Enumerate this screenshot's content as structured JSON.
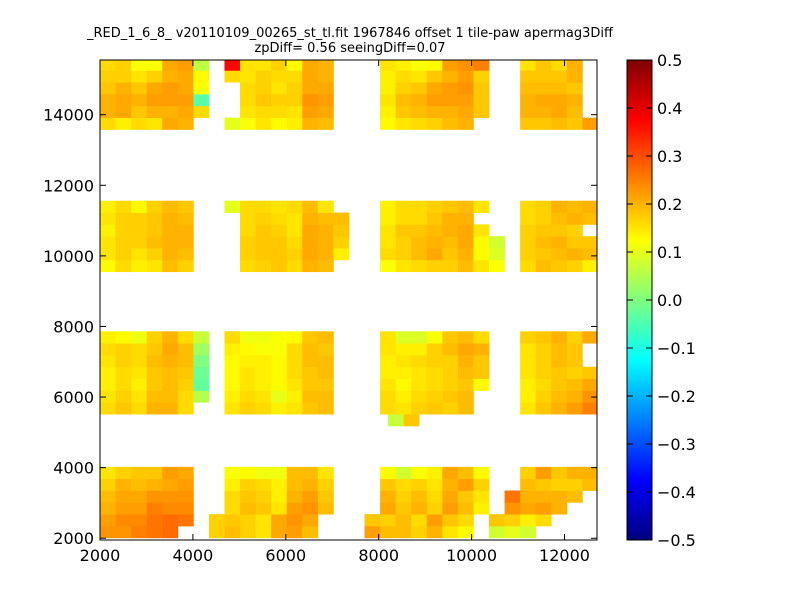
{
  "chart_data": {
    "type": "heatmap",
    "title_line1": "_RED_1_6_8_ v20110109_00265_st_tl.fit 1967846 offset 1 tile-paw apermag3Diff",
    "title_line2": "zpDiff= 0.56 seeingDiff=0.07",
    "xlabel": "",
    "ylabel": "",
    "xlim": [
      2000,
      12700
    ],
    "ylim": [
      1950,
      15550
    ],
    "x_ticks": [
      2000,
      4000,
      6000,
      8000,
      10000,
      12000
    ],
    "y_ticks": [
      2000,
      4000,
      6000,
      8000,
      10000,
      12000,
      14000
    ],
    "colorbar": {
      "vmin": -0.5,
      "vmax": 0.5,
      "colormap": "jet",
      "ticks": [
        "0.5",
        "0.4",
        "0.3",
        "0.2",
        "0.1",
        "0.0",
        "−0.1",
        "−0.2",
        "−0.3",
        "−0.4",
        "−0.5"
      ]
    },
    "grid": false,
    "cell_size": 335,
    "rows": [
      {
        "y": 2180,
        "x0": 2000,
        "values": [
          0.23,
          0.23,
          0.25,
          0.26,
          0.27,
          null,
          null,
          0.17,
          0.19,
          0.17,
          0.15,
          0.21,
          0.22,
          0.19,
          null,
          null,
          null,
          0.22,
          0.19,
          0.19,
          0.17,
          0.2,
          0.15,
          0.13,
          null,
          0.08,
          0.1,
          0.08
        ]
      },
      {
        "y": 2515,
        "x0": 2000,
        "values": [
          0.22,
          0.24,
          0.24,
          0.26,
          0.27,
          0.26,
          null,
          0.17,
          0.18,
          0.17,
          0.15,
          0.21,
          0.23,
          0.21,
          null,
          null,
          null,
          0.18,
          0.17,
          0.19,
          0.16,
          0.22,
          0.18,
          0.16,
          null,
          0.18,
          0.17,
          0.14,
          0.16
        ]
      },
      {
        "y": 2850,
        "x0": 2000,
        "values": [
          0.2,
          0.22,
          0.22,
          0.25,
          0.24,
          0.24,
          null,
          null,
          0.16,
          0.19,
          0.18,
          0.15,
          0.22,
          0.23,
          0.19,
          null,
          null,
          null,
          0.21,
          0.18,
          0.2,
          0.17,
          0.22,
          0.19,
          0.14,
          null,
          0.23,
          0.21,
          0.22,
          0.2
        ]
      },
      {
        "y": 3185,
        "x0": 2000,
        "values": [
          0.19,
          0.21,
          0.21,
          0.23,
          0.23,
          0.23,
          null,
          null,
          0.16,
          0.18,
          0.17,
          0.14,
          0.2,
          0.22,
          0.18,
          null,
          null,
          null,
          0.2,
          0.17,
          0.19,
          0.16,
          0.21,
          0.18,
          0.15,
          null,
          0.26,
          0.2,
          0.2,
          0.2,
          0.19
        ]
      },
      {
        "y": 3520,
        "x0": 2000,
        "values": [
          0.17,
          0.2,
          0.19,
          0.2,
          0.21,
          0.22,
          null,
          null,
          0.14,
          0.17,
          0.16,
          0.14,
          0.19,
          0.2,
          0.17,
          null,
          null,
          null,
          0.18,
          0.16,
          0.17,
          0.15,
          0.2,
          0.22,
          0.17,
          null,
          null,
          0.19,
          0.18,
          0.17,
          0.17,
          0.19
        ]
      },
      {
        "y": 3855,
        "x0": 2000,
        "values": [
          0.15,
          0.17,
          0.18,
          0.18,
          0.22,
          0.21,
          null,
          null,
          0.12,
          0.13,
          0.11,
          0.11,
          0.19,
          0.19,
          0.15,
          null,
          null,
          null,
          0.13,
          0.08,
          0.12,
          0.14,
          0.21,
          0.19,
          0.13,
          null,
          null,
          0.17,
          0.22,
          0.18,
          0.2,
          0.2,
          0.22,
          0.18
        ]
      },
      {
        "y": 5350,
        "x0": 8200,
        "values": [
          0.07,
          0.18
        ]
      },
      {
        "y": 5685,
        "x0": 2000,
        "values": [
          0.16,
          0.18,
          0.16,
          0.2,
          0.2,
          0.16,
          null,
          null,
          0.15,
          0.17,
          0.16,
          0.14,
          0.15,
          0.18,
          0.19,
          null,
          null,
          null,
          0.16,
          0.15,
          0.17,
          0.18,
          0.17,
          0.19,
          null,
          null,
          null,
          0.15,
          0.18,
          0.2,
          0.22,
          0.25,
          0.23
        ]
      },
      {
        "y": 6020,
        "x0": 2000,
        "values": [
          0.15,
          0.17,
          0.15,
          0.19,
          0.19,
          0.16,
          0.05,
          null,
          0.14,
          0.16,
          0.15,
          0.1,
          0.14,
          0.19,
          0.19,
          null,
          null,
          null,
          0.16,
          0.14,
          0.16,
          0.17,
          0.18,
          0.19,
          null,
          null,
          null,
          0.14,
          0.17,
          0.19,
          0.2,
          0.23,
          0.21
        ]
      },
      {
        "y": 6355,
        "x0": 2000,
        "values": [
          0.14,
          0.16,
          0.14,
          0.18,
          0.19,
          0.17,
          -0.03,
          null,
          0.13,
          0.15,
          0.14,
          0.13,
          0.15,
          0.18,
          0.18,
          null,
          null,
          null,
          0.15,
          0.13,
          0.15,
          0.16,
          0.17,
          0.18,
          0.13,
          null,
          null,
          0.14,
          0.16,
          0.18,
          0.19,
          0.21,
          0.2
        ]
      },
      {
        "y": 6690,
        "x0": 2000,
        "values": [
          0.14,
          0.16,
          0.15,
          0.18,
          0.19,
          0.18,
          -0.02,
          null,
          0.13,
          0.15,
          0.14,
          0.13,
          0.16,
          0.18,
          0.19,
          null,
          null,
          null,
          0.14,
          0.14,
          0.15,
          0.16,
          0.17,
          0.19,
          0.18,
          null,
          null,
          0.15,
          0.17,
          0.18,
          0.17,
          0.18,
          0.19
        ]
      },
      {
        "y": 7025,
        "x0": 2000,
        "values": [
          0.15,
          0.17,
          0.16,
          0.19,
          0.2,
          0.19,
          0.0,
          null,
          0.13,
          0.14,
          0.14,
          0.13,
          0.16,
          0.19,
          0.19,
          null,
          null,
          null,
          0.14,
          0.15,
          0.16,
          0.17,
          0.17,
          0.2,
          0.18,
          null,
          null,
          0.15,
          0.17,
          0.19,
          0.18
        ]
      },
      {
        "y": 7360,
        "x0": 2000,
        "values": [
          0.16,
          0.17,
          0.16,
          0.18,
          0.21,
          0.19,
          0.03,
          null,
          0.14,
          0.13,
          0.12,
          0.12,
          0.16,
          0.19,
          0.18,
          null,
          null,
          null,
          0.15,
          0.14,
          0.14,
          0.17,
          0.19,
          0.21,
          0.2,
          null,
          null,
          0.15,
          0.17,
          0.19,
          0.18
        ]
      },
      {
        "y": 7695,
        "x0": 2000,
        "values": [
          0.14,
          0.13,
          0.11,
          0.17,
          0.2,
          0.16,
          0.07,
          null,
          0.16,
          0.11,
          0.11,
          0.12,
          0.13,
          0.18,
          0.19,
          null,
          null,
          null,
          0.15,
          0.09,
          0.09,
          0.12,
          0.18,
          0.19,
          0.16,
          null,
          null,
          0.17,
          0.18,
          0.2,
          0.17,
          0.21,
          0.22
        ]
      },
      {
        "y": 9720,
        "x0": 2000,
        "values": [
          0.13,
          0.16,
          0.14,
          0.15,
          0.19,
          0.17,
          null,
          null,
          null,
          0.16,
          0.17,
          0.18,
          0.16,
          0.2,
          0.19,
          null,
          null,
          null,
          0.12,
          0.15,
          0.16,
          0.17,
          0.17,
          0.19,
          0.15,
          0.12,
          null,
          0.16,
          0.19,
          0.18,
          0.17,
          0.14,
          0.25
        ]
      },
      {
        "y": 10055,
        "x0": 2000,
        "values": [
          0.15,
          0.17,
          0.15,
          0.17,
          0.2,
          0.19,
          null,
          null,
          null,
          0.17,
          0.18,
          0.18,
          0.17,
          0.21,
          0.2,
          0.14,
          null,
          null,
          0.16,
          0.17,
          0.19,
          0.21,
          0.18,
          0.2,
          0.13,
          0.09,
          null,
          0.17,
          0.18,
          0.19,
          0.2,
          0.19
        ]
      },
      {
        "y": 10390,
        "x0": 2000,
        "values": [
          0.15,
          0.17,
          0.17,
          0.19,
          0.2,
          0.2,
          null,
          null,
          null,
          0.17,
          0.18,
          0.18,
          0.16,
          0.21,
          0.2,
          0.17,
          null,
          null,
          0.15,
          0.17,
          0.19,
          0.2,
          0.19,
          0.21,
          0.13,
          0.08,
          null,
          0.17,
          0.19,
          0.2,
          0.18,
          0.18
        ]
      },
      {
        "y": 10725,
        "x0": 2000,
        "values": [
          0.14,
          0.17,
          0.17,
          0.18,
          0.2,
          0.2,
          null,
          null,
          null,
          0.16,
          0.18,
          0.17,
          0.15,
          0.21,
          0.2,
          0.18,
          null,
          null,
          0.15,
          0.18,
          0.18,
          0.19,
          0.2,
          0.21,
          0.15,
          null,
          null,
          0.17,
          0.18,
          0.18,
          0.17
        ]
      },
      {
        "y": 11060,
        "x0": 2000,
        "values": [
          0.15,
          0.17,
          0.17,
          0.18,
          0.2,
          0.19,
          null,
          null,
          null,
          0.16,
          0.17,
          0.16,
          0.15,
          0.2,
          0.19,
          0.19,
          null,
          null,
          0.14,
          0.16,
          0.16,
          0.18,
          0.2,
          0.2,
          null,
          null,
          null,
          0.16,
          0.17,
          0.19,
          0.2,
          0.19
        ]
      },
      {
        "y": 11395,
        "x0": 2000,
        "values": [
          0.14,
          0.16,
          0.13,
          0.17,
          0.19,
          0.18,
          null,
          null,
          0.1,
          0.16,
          0.16,
          0.15,
          0.16,
          0.19,
          0.15,
          null,
          null,
          null,
          0.14,
          0.16,
          0.16,
          0.17,
          0.18,
          0.19,
          0.15,
          null,
          null,
          0.16,
          0.17,
          0.2,
          0.19,
          0.2,
          0.2
        ]
      },
      {
        "y": 13750,
        "x0": 2000,
        "values": [
          0.16,
          0.14,
          0.16,
          0.15,
          0.21,
          0.2,
          null,
          null,
          0.1,
          0.12,
          0.15,
          0.13,
          0.14,
          0.2,
          0.19,
          null,
          null,
          null,
          0.13,
          0.15,
          0.16,
          0.17,
          0.19,
          0.2,
          null,
          null,
          null,
          0.18,
          0.18,
          0.19,
          0.18,
          0.22,
          0.22
        ]
      },
      {
        "y": 14085,
        "x0": 2000,
        "values": [
          0.2,
          0.21,
          0.18,
          0.2,
          0.2,
          0.21,
          0.16,
          null,
          null,
          0.15,
          0.16,
          0.16,
          0.15,
          0.22,
          0.21,
          null,
          null,
          null,
          0.14,
          0.18,
          0.19,
          0.2,
          0.2,
          0.21,
          0.18,
          null,
          null,
          0.2,
          0.2,
          0.21,
          0.19
        ]
      },
      {
        "y": 14420,
        "x0": 2000,
        "values": [
          0.2,
          0.21,
          0.2,
          0.22,
          0.22,
          0.22,
          -0.04,
          null,
          null,
          0.16,
          0.18,
          0.17,
          0.17,
          0.23,
          0.22,
          null,
          null,
          null,
          0.15,
          0.19,
          0.2,
          0.22,
          0.22,
          0.22,
          0.18,
          null,
          null,
          0.2,
          0.21,
          0.21,
          0.2
        ]
      },
      {
        "y": 14755,
        "x0": 2000,
        "values": [
          0.18,
          0.2,
          0.18,
          0.21,
          0.22,
          0.21,
          0.12,
          null,
          null,
          0.16,
          0.17,
          0.15,
          0.17,
          0.21,
          0.21,
          null,
          null,
          null,
          0.14,
          0.17,
          0.18,
          0.21,
          0.22,
          0.23,
          0.18,
          null,
          null,
          0.19,
          0.19,
          0.19,
          0.18
        ]
      },
      {
        "y": 15090,
        "x0": 2000,
        "values": [
          0.17,
          0.17,
          0.15,
          0.17,
          0.2,
          0.21,
          0.13,
          null,
          0.16,
          0.15,
          0.17,
          0.16,
          0.16,
          0.21,
          0.2,
          null,
          null,
          null,
          0.14,
          0.16,
          0.15,
          0.18,
          0.2,
          0.22,
          0.17,
          null,
          null,
          0.18,
          0.18,
          0.18,
          0.2
        ]
      },
      {
        "y": 15425,
        "x0": 2000,
        "values": [
          0.16,
          0.17,
          0.12,
          0.12,
          0.21,
          0.22,
          0.06,
          null,
          0.37,
          0.15,
          0.15,
          0.17,
          0.13,
          0.21,
          0.2,
          null,
          null,
          null,
          0.15,
          0.14,
          0.12,
          0.13,
          0.22,
          0.23,
          0.25,
          null,
          null,
          0.15,
          0.18,
          0.16,
          0.2
        ]
      }
    ]
  }
}
